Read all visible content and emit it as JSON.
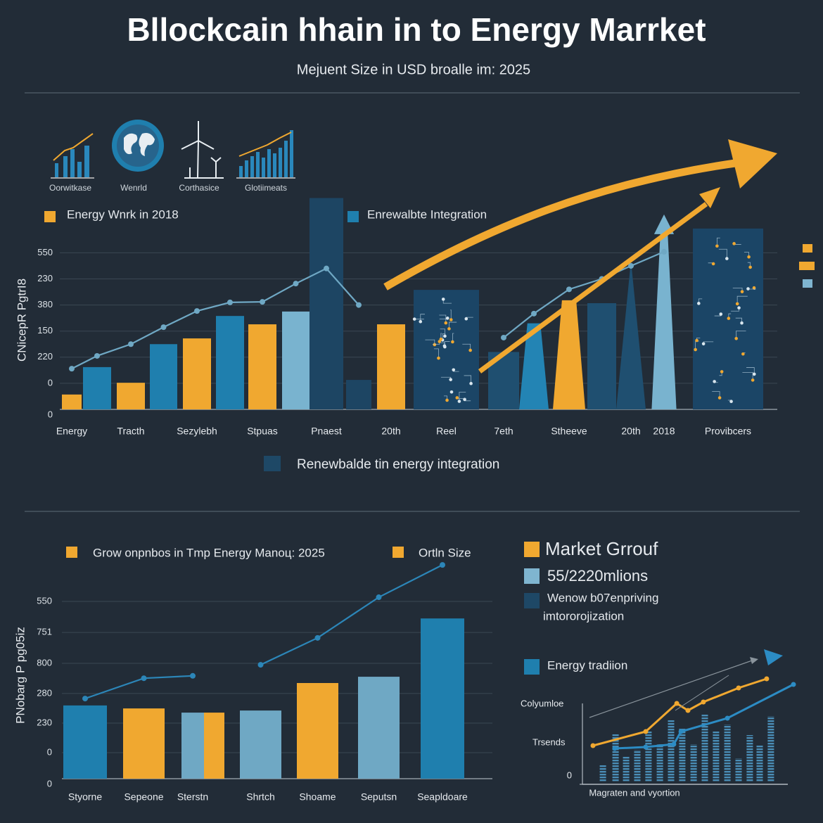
{
  "header": {
    "title": "Bllockcain hhain in to Energy Marrket",
    "subtitle": "Mejuent Size  in USD broalle im: 2025"
  },
  "icons": [
    "Oorwitkase",
    "Wenrld",
    "Corthasice",
    "Glotiimeats"
  ],
  "chart_data": [
    {
      "type": "bar",
      "y_label": "CNicepR PgtrI8",
      "legend": [
        {
          "label": "Energy Wnrk in 2018",
          "color": "#f0a830"
        },
        {
          "label": "Enrewalbte Integration",
          "color": "#1f7fae"
        }
      ],
      "bottom_legend": {
        "label": "Renewbalde tin energy integration",
        "color": "#1e4866"
      },
      "categories": [
        "Energy",
        null,
        "Tracth",
        null,
        "Sezylebh",
        null,
        "Stpuas",
        null,
        "Pnaest",
        null,
        "20th",
        "Reel",
        "7eth",
        null,
        "Stheeve",
        null,
        "20th",
        "2018",
        "Provibcers"
      ],
      "values": [
        0.57,
        1.62,
        1.02,
        2.5,
        2.72,
        3.58,
        3.26,
        3.75,
        8.1,
        1.13,
        3.26,
        4.58,
        2.2,
        3.3,
        4.18,
        4.07,
        5.7,
        7.47,
        6.93
      ],
      "colors": [
        "#f0a830",
        "#1f7fae",
        "#f0a830",
        "#1f7fae",
        "#f0a830",
        "#1f7fae",
        "#f0a830",
        "#79b3cf",
        "#1d4563",
        "#1d4563",
        "#f0a830",
        "#1b4566",
        "#1f4f70",
        "#2384b4",
        "#f0a830",
        "#1f4f70",
        "#1f4f70",
        "#79b3cf",
        "#1b4566"
      ],
      "line": {
        "color": "#6fa8c4",
        "values": [
          1.56,
          2.05,
          2.5,
          3.15,
          3.77,
          4.1,
          4.12,
          4.82,
          5.4,
          4.0,
          null,
          null,
          2.75,
          3.67,
          4.6,
          5.0,
          5.5,
          6.04,
          null
        ]
      },
      "ylim": [
        0,
        8.5
      ],
      "yticks": [
        0,
        {
          "value": 1,
          "label": "0"
        },
        {
          "value": 2,
          "label": "220"
        },
        {
          "value": 3,
          "label": "150"
        },
        {
          "value": 4,
          "label": "380"
        },
        {
          "value": 5,
          "label": "230"
        },
        {
          "value": 6,
          "label": "550"
        }
      ],
      "grid": true
    },
    {
      "type": "bar",
      "y_label": "PNobarg P pg05iz",
      "legend": [
        {
          "label": "Grow onpnbos in Tmp Energy Manoц: 2025",
          "color": "#f0a830"
        },
        {
          "label": "Ortln Size",
          "color": "#f0a830"
        }
      ],
      "categories": [
        "Styorne",
        "Sepeone",
        "Sterstn",
        null,
        "Shrtch",
        "Shoame",
        "Seputsn",
        "Seapldoare"
      ],
      "values": [
        2.45,
        2.35,
        2.21,
        2.21,
        2.28,
        3.2,
        3.41,
        5.36
      ],
      "colors": [
        "#1f7fae",
        "#f0a830",
        "#6fa8c4",
        "#f0a830",
        "#6fa8c4",
        "#f0a830",
        "#6fa8c4",
        "#1f7fae"
      ],
      "line": {
        "color": "#2c86b8",
        "values": [
          2.68,
          3.36,
          3.44,
          null,
          3.81,
          4.71,
          6.07,
          7.15
        ]
      },
      "ylim": [
        0,
        7.5
      ],
      "yticks": [
        0,
        {
          "value": 0.87,
          "label": "0"
        },
        {
          "value": 1.86,
          "label": "230"
        },
        {
          "value": 2.85,
          "label": "280"
        },
        {
          "value": 3.86,
          "label": "800"
        },
        {
          "value": 4.89,
          "label": "751"
        },
        {
          "value": 5.93,
          "label": "550"
        }
      ],
      "grid": true
    },
    {
      "type": "bar",
      "title": "Market Grrouf",
      "title_color": "#f0a830",
      "legend": [
        {
          "label": "55/2220mlions",
          "color": "#7fb5d0"
        },
        {
          "lines": [
            "Wenow b07enpriving",
            "imtororojization"
          ],
          "color": "#1e4866"
        },
        {
          "label": "Energy tradiion",
          "color": "#1f7fae"
        }
      ],
      "y_labels": [
        "Colyumloe",
        "Trsends"
      ],
      "x_label": "Magraten  and vyortion",
      "xlim": [
        0,
        100
      ],
      "ylim": [
        0,
        100
      ],
      "yticks": [
        0
      ],
      "x": [
        9.7,
        15.7,
        20.7,
        26,
        31.3,
        36.7,
        42,
        47.3,
        52.7,
        58,
        63.3,
        68.7,
        74,
        79.3,
        84,
        89.3
      ],
      "values": [
        13.5,
        36,
        20,
        24.5,
        37.5,
        28.5,
        46,
        39.5,
        28.5,
        50,
        37.5,
        42.5,
        18.5,
        35,
        27.5,
        48.5
      ],
      "color": "#3f84b0",
      "series": [
        {
          "color": "#f0a830",
          "x": [
            5,
            30,
            44.7,
            50,
            57.3,
            74,
            87.3
          ],
          "values": [
            27.5,
            37.5,
            57.5,
            52.5,
            58.5,
            68.5,
            75
          ]
        },
        {
          "color": "#2c8cc4",
          "x": [
            15.3,
            30,
            43.3,
            46.7,
            68.7,
            100
          ],
          "values": [
            25.5,
            26.5,
            28.5,
            37.5,
            47,
            71
          ]
        }
      ]
    }
  ]
}
